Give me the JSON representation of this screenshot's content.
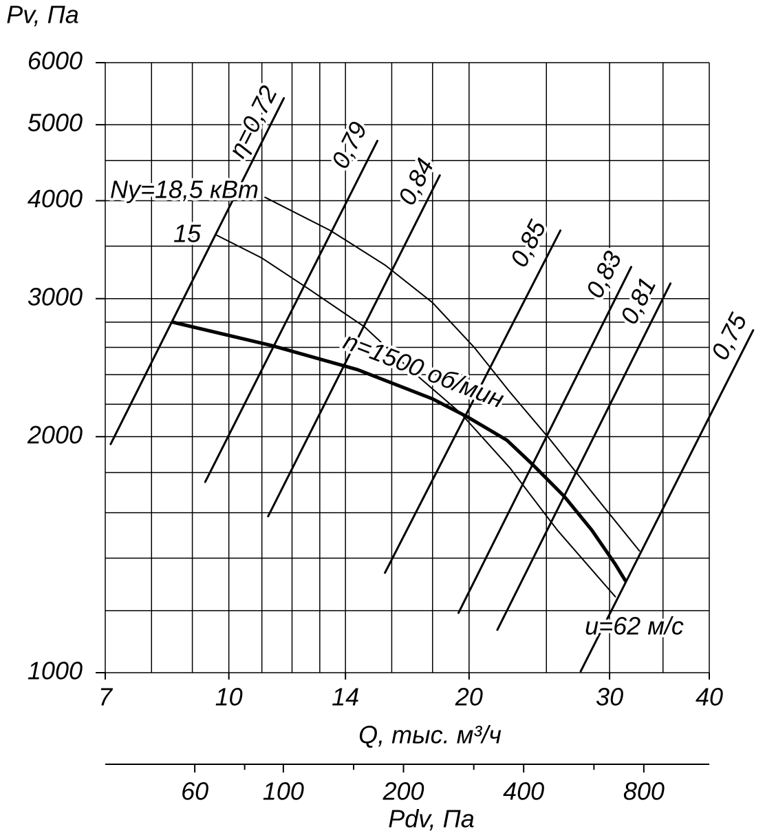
{
  "chart_data": {
    "type": "line",
    "y_label": "Pv, Па",
    "x_label": "Q, тыс. м³/ч",
    "x2_label": "Pdv, Па",
    "x_scale": "log",
    "y_scale": "log",
    "x2_scale": "log",
    "xlim": [
      7,
      40
    ],
    "ylim": [
      1000,
      6000
    ],
    "xticks": [
      7,
      10,
      14,
      20,
      30,
      40
    ],
    "yticks": [
      1000,
      2000,
      3000,
      4000,
      5000,
      6000
    ],
    "xgrid": [
      7,
      8,
      9,
      10,
      11,
      12,
      13,
      14,
      16,
      18,
      20,
      25,
      30,
      35,
      40
    ],
    "ygrid": [
      1000,
      1200,
      1400,
      1600,
      1800,
      2000,
      2200,
      2400,
      2600,
      2800,
      3000,
      3500,
      4000,
      4500,
      5000,
      6000
    ],
    "x2lim": [
      35.8,
      1167
    ],
    "x2ticks": [
      60,
      100,
      200,
      400,
      800
    ],
    "x2minor": [
      80,
      150,
      300,
      600
    ],
    "grid": true,
    "color": "#000000",
    "annotation": "u=62 м/с",
    "series": [
      {
        "name": "n=1500 об/мин",
        "width": 5,
        "x": [
          8.5,
          11.3,
          14.5,
          18.0,
          19.9,
          22.3,
          24.0,
          26.3,
          28.5,
          30.5,
          31.4
        ],
        "values": [
          2800,
          2615,
          2435,
          2235,
          2120,
          1980,
          1845,
          1680,
          1520,
          1375,
          1310
        ]
      },
      {
        "name": "Ny=18,5 кВт",
        "width": 2,
        "x": [
          11.1,
          13.4,
          15.7,
          18.0,
          20.3,
          22.5,
          25.3,
          28.5,
          32.7
        ],
        "values": [
          4040,
          3665,
          3310,
          2965,
          2600,
          2280,
          1980,
          1700,
          1430
        ]
      },
      {
        "name": "15",
        "width": 2,
        "x": [
          9.65,
          11.0,
          12.6,
          14.8,
          17.0,
          19.5,
          22.5,
          25.8,
          30.5
        ],
        "values": [
          3615,
          3380,
          3085,
          2760,
          2420,
          2145,
          1825,
          1520,
          1250
        ]
      },
      {
        "name": "η=0,72",
        "width": 3,
        "x": [
          7.11,
          11.72
        ],
        "values": [
          1957,
          5406
        ]
      },
      {
        "name": "0,79",
        "width": 3,
        "x": [
          9.34,
          15.35
        ],
        "values": [
          1751,
          4769
        ]
      },
      {
        "name": "0,84",
        "width": 3,
        "x": [
          11.2,
          18.38
        ],
        "values": [
          1583,
          4309
        ]
      },
      {
        "name": "0,85",
        "width": 3,
        "x": [
          15.69,
          26.03
        ],
        "values": [
          1341,
          3665
        ]
      },
      {
        "name": "0,83",
        "width": 3,
        "x": [
          19.4,
          31.93
        ],
        "values": [
          1192,
          3293
        ]
      },
      {
        "name": "0,81",
        "width": 3,
        "x": [
          21.7,
          35.76
        ],
        "values": [
          1134,
          3137
        ]
      },
      {
        "name": "0,75",
        "width": 3,
        "x": [
          27.6,
          45.4
        ],
        "values": [
          1004,
          2734
        ]
      }
    ]
  }
}
